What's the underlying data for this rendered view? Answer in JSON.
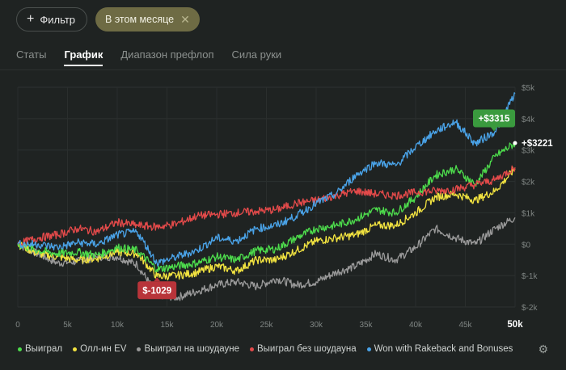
{
  "filter_bar": {
    "filter_label": "Фильтр",
    "active_chip": "В этом месяце"
  },
  "tabs": [
    {
      "label": "Статы",
      "active": false
    },
    {
      "label": "График",
      "active": true
    },
    {
      "label": "Диапазон префлоп",
      "active": false
    },
    {
      "label": "Сила руки",
      "active": false
    }
  ],
  "chart_data": {
    "type": "line",
    "x_ticks": [
      "0",
      "5k",
      "10k",
      "15k",
      "20k",
      "25k",
      "30k",
      "35k",
      "40k",
      "45k",
      "50k"
    ],
    "y_ticks": [
      "$5k",
      "$4k",
      "$3k",
      "$2k",
      "$1k",
      "$0",
      "$-1k",
      "$-2k"
    ],
    "xlim": [
      0,
      50000
    ],
    "ylim": [
      -2000,
      5000
    ],
    "grid": true,
    "legend_position": "bottom",
    "series": [
      {
        "name": "Выиграл",
        "color": "#4ddc4c",
        "x": [
          0,
          2000,
          4000,
          6000,
          8000,
          10000,
          12000,
          14000,
          16000,
          18000,
          20000,
          22000,
          24000,
          26000,
          28000,
          30000,
          32000,
          34000,
          36000,
          38000,
          40000,
          42000,
          44000,
          46000,
          48000,
          50000
        ],
        "y": [
          0,
          -200,
          -300,
          -250,
          -350,
          -100,
          -200,
          -800,
          -700,
          -600,
          -400,
          -500,
          -200,
          -150,
          200,
          500,
          600,
          800,
          1100,
          1000,
          1500,
          2200,
          2400,
          1900,
          2800,
          3221
        ]
      },
      {
        "name": "Олл-ин EV",
        "color": "#f2e340",
        "x": [
          0,
          2000,
          4000,
          6000,
          8000,
          10000,
          12000,
          14000,
          16000,
          18000,
          20000,
          22000,
          24000,
          26000,
          28000,
          30000,
          32000,
          34000,
          36000,
          38000,
          40000,
          42000,
          44000,
          46000,
          48000,
          50000
        ],
        "y": [
          0,
          -300,
          -400,
          -500,
          -450,
          -250,
          -300,
          -1029,
          -1000,
          -900,
          -700,
          -850,
          -500,
          -500,
          -200,
          100,
          200,
          300,
          600,
          600,
          1000,
          1500,
          1600,
          1400,
          1700,
          2400
        ]
      },
      {
        "name": "Выиграл на шоудауне",
        "color": "#9a9a9a",
        "x": [
          0,
          2000,
          4000,
          6000,
          8000,
          10000,
          12000,
          14000,
          16000,
          18000,
          20000,
          22000,
          24000,
          26000,
          28000,
          30000,
          32000,
          34000,
          36000,
          38000,
          40000,
          42000,
          44000,
          46000,
          48000,
          50000
        ],
        "y": [
          0,
          -300,
          -600,
          -550,
          -400,
          -400,
          -650,
          -1600,
          -1700,
          -1500,
          -1300,
          -1200,
          -1350,
          -1100,
          -1300,
          -1200,
          -900,
          -700,
          -300,
          -500,
          -100,
          500,
          200,
          0,
          500,
          850
        ]
      },
      {
        "name": "Выиграл без шоудауна",
        "color": "#e34a4a",
        "x": [
          0,
          2000,
          4000,
          6000,
          8000,
          10000,
          12000,
          14000,
          16000,
          18000,
          20000,
          22000,
          24000,
          26000,
          28000,
          30000,
          32000,
          34000,
          36000,
          38000,
          40000,
          42000,
          44000,
          46000,
          48000,
          50000
        ],
        "y": [
          0,
          200,
          300,
          500,
          400,
          700,
          600,
          550,
          650,
          900,
          950,
          1000,
          1050,
          1100,
          1300,
          1400,
          1550,
          1700,
          1600,
          1550,
          1650,
          1700,
          1750,
          1900,
          2050,
          2450
        ]
      },
      {
        "name": "Won with Rakeback and Bonuses",
        "color": "#4aa3e8",
        "x": [
          0,
          2000,
          4000,
          6000,
          8000,
          10000,
          12000,
          14000,
          16000,
          18000,
          20000,
          22000,
          24000,
          26000,
          28000,
          30000,
          32000,
          34000,
          36000,
          38000,
          40000,
          42000,
          44000,
          46000,
          48000,
          50000
        ],
        "y": [
          0,
          0,
          -100,
          50,
          0,
          300,
          400,
          -600,
          -400,
          -200,
          200,
          100,
          500,
          600,
          900,
          1300,
          1600,
          2200,
          2600,
          2500,
          3100,
          3600,
          3900,
          3200,
          3600,
          4800
        ]
      }
    ],
    "annotations": [
      {
        "text": "+$3315",
        "x": 50000,
        "y": 3315,
        "color": "#3a9a3e"
      },
      {
        "text": "+$3221",
        "x": 50000,
        "y": 3221
      },
      {
        "text": "$-1029",
        "x": 14000,
        "y": -1029,
        "color": "#b8343a"
      }
    ]
  },
  "legend": [
    {
      "label": "Выиграл",
      "color": "#4ddc4c"
    },
    {
      "label": "Олл-ин EV",
      "color": "#f2e340"
    },
    {
      "label": "Выиграл на шоудауне",
      "color": "#9a9a9a"
    },
    {
      "label": "Выиграл без шоудауна",
      "color": "#e34a4a"
    },
    {
      "label": "Won with Rakeback and Bonuses",
      "color": "#4aa3e8"
    }
  ],
  "icons": {
    "filter": "plus-icon",
    "chip_close": "close-icon",
    "settings": "gear-icon"
  }
}
